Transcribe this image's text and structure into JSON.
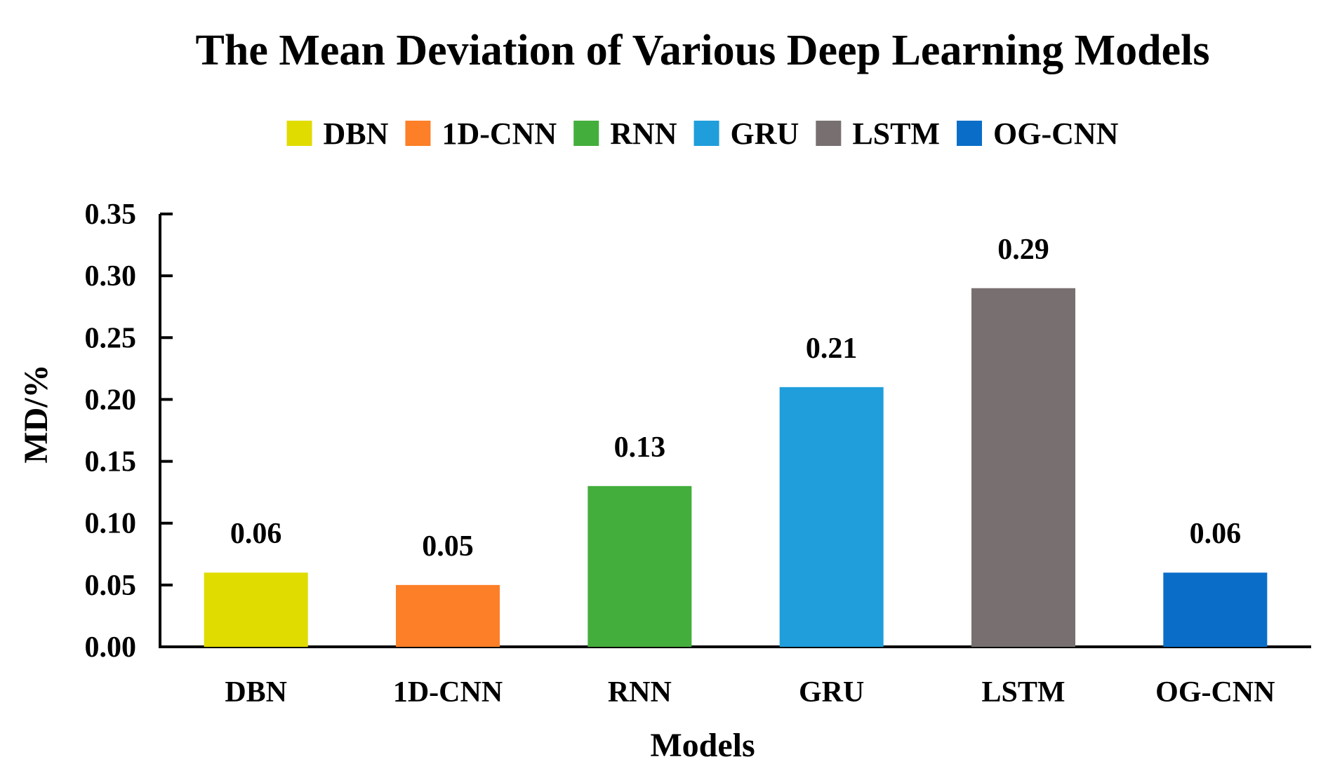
{
  "chart_data": {
    "type": "bar",
    "title": "The Mean Deviation of Various Deep Learning Models",
    "xlabel": "Models",
    "ylabel": "MD/%",
    "categories": [
      "DBN",
      "1D-CNN",
      "RNN",
      "GRU",
      "LSTM",
      "OG-CNN"
    ],
    "values": [
      0.06,
      0.05,
      0.13,
      0.21,
      0.29,
      0.06
    ],
    "value_labels": [
      "0.06",
      "0.05",
      "0.13",
      "0.21",
      "0.29",
      "0.06"
    ],
    "colors": [
      "#e0dc00",
      "#fd7f28",
      "#44ae3c",
      "#1f9edb",
      "#787070",
      "#0a6ec8"
    ],
    "ylim": [
      0,
      0.35
    ],
    "yticks": [
      "0.00",
      "0.05",
      "0.10",
      "0.15",
      "0.20",
      "0.25",
      "0.30",
      "0.35"
    ],
    "grid": false,
    "legend": {
      "position": "top-center",
      "entries": [
        "DBN",
        "1D-CNN",
        "RNN",
        "GRU",
        "LSTM",
        "OG-CNN"
      ]
    }
  }
}
